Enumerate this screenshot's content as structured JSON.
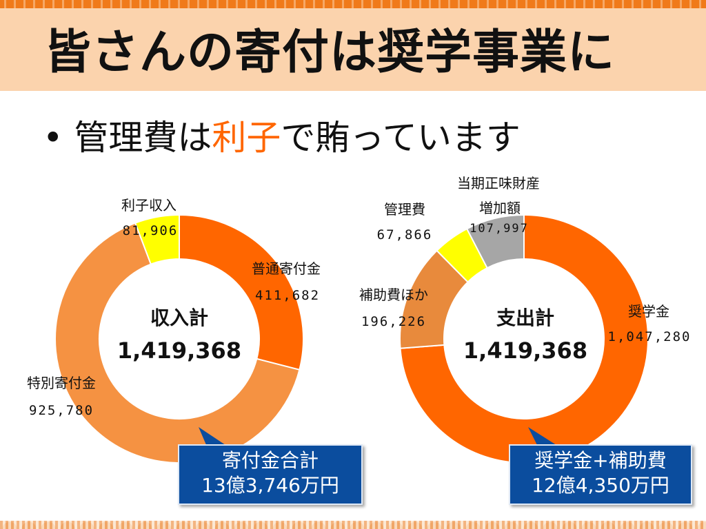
{
  "title": "皆さんの寄付は奨学事業に",
  "bullet": {
    "mark": "•",
    "before": "管理費は",
    "accent": "利子",
    "after": "で賄っています"
  },
  "colors": {
    "accent": "#ff6600",
    "title_band": "#fbd3ad",
    "callout_bg": "#0b4d9e"
  },
  "chart_data": [
    {
      "type": "pie",
      "variant": "donut",
      "center_label": "収入計",
      "center_value": "1,419,368",
      "slices": [
        {
          "label": "普通寄付金",
          "value": 411682,
          "value_text": "411,682",
          "color": "#ff6600"
        },
        {
          "label": "特別寄付金",
          "value": 925780,
          "value_text": "925,780",
          "color": "#f59242"
        },
        {
          "label": "利子収入",
          "value": 81906,
          "value_text": "81,906",
          "color": "#ffff00"
        }
      ],
      "callout": {
        "line1": "寄付金合計",
        "line2": "13億3,746万円"
      }
    },
    {
      "type": "pie",
      "variant": "donut",
      "center_label": "支出計",
      "center_value": "1,419,368",
      "slices": [
        {
          "label": "奨学金",
          "value": 1047280,
          "value_text": "1,047,280",
          "color": "#ff6600"
        },
        {
          "label": "補助費ほか",
          "value": 196226,
          "value_text": "196,226",
          "color": "#e88a3c"
        },
        {
          "label": "管理費",
          "value": 67866,
          "value_text": "67,866",
          "color": "#ffff00"
        },
        {
          "label": "当期正味財産増加額",
          "label_line1": "当期正味財産",
          "label_line2": "増加額",
          "value": 107997,
          "value_text": "107,997",
          "color": "#a6a6a6"
        }
      ],
      "callout": {
        "line1": "奨学金+補助費",
        "line2": "12億4,350万円"
      }
    }
  ]
}
